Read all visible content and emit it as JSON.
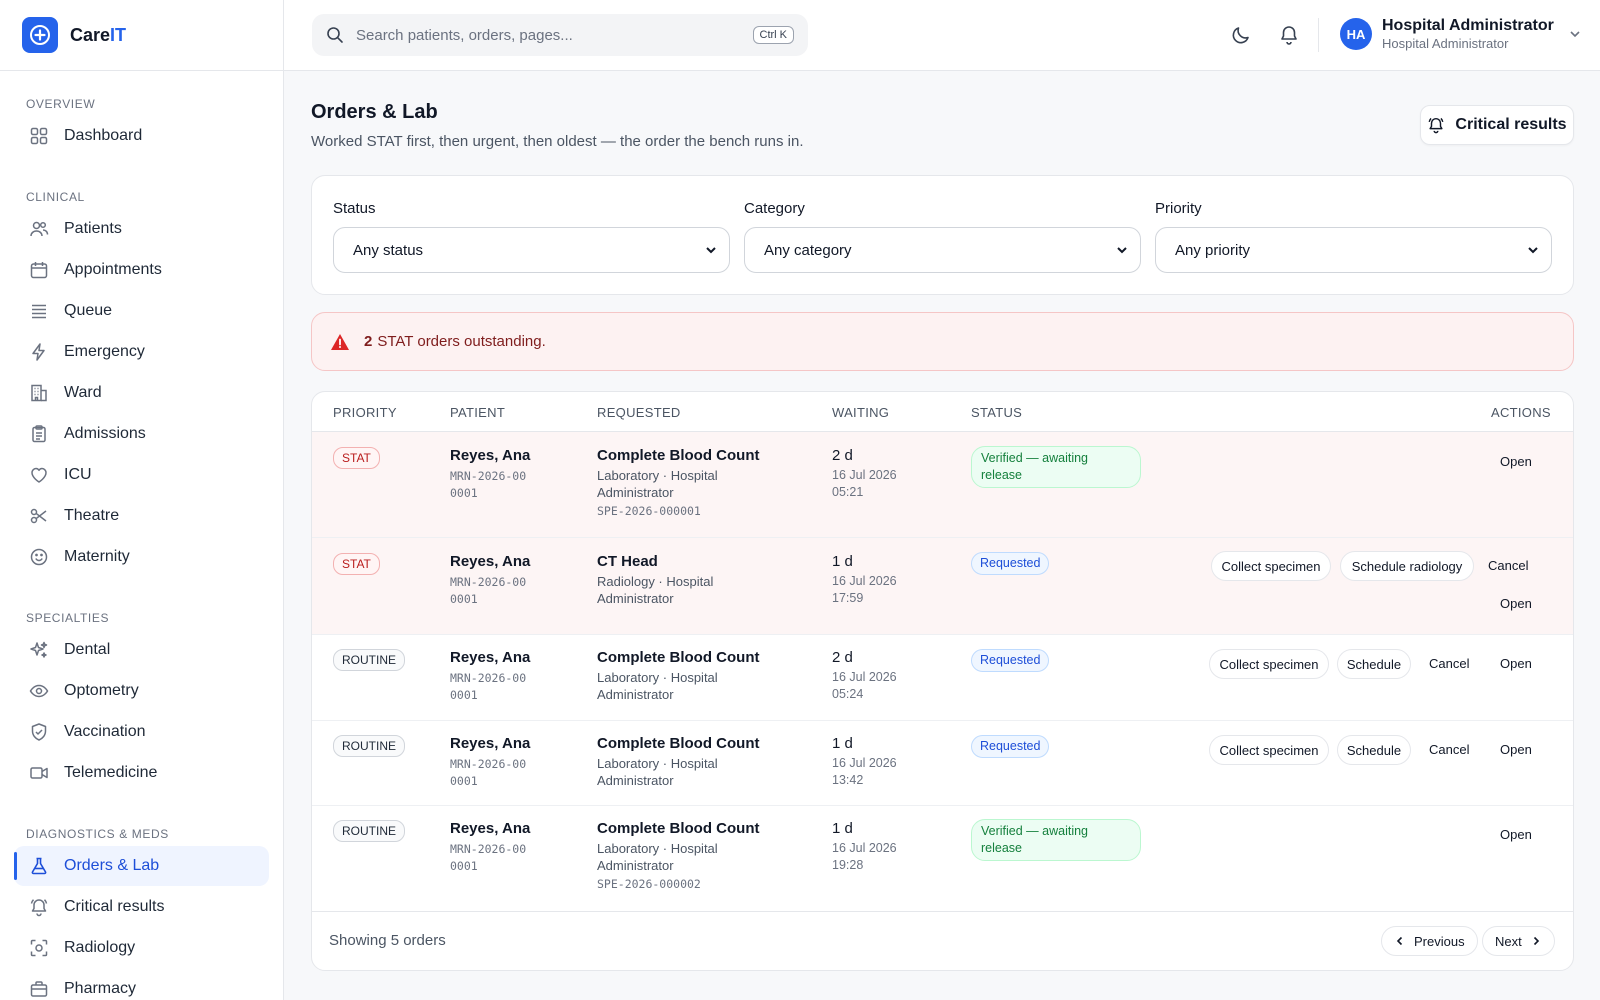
{
  "brand": {
    "name_main": "Care",
    "name_accent": "IT"
  },
  "search": {
    "placeholder": "Search patients, orders, pages...",
    "shortcut": "Ctrl K"
  },
  "user": {
    "initials": "HA",
    "name": "Hospital Administrator",
    "role": "Hospital Administrator"
  },
  "sidebar": {
    "sections": {
      "overview": "OVERVIEW",
      "clinical": "CLINICAL",
      "specialties": "SPECIALTIES",
      "diagnostics": "DIAGNOSTICS & MEDS"
    },
    "items": {
      "dashboard": "Dashboard",
      "patients": "Patients",
      "appointments": "Appointments",
      "queue": "Queue",
      "emergency": "Emergency",
      "ward": "Ward",
      "admissions": "Admissions",
      "icu": "ICU",
      "theatre": "Theatre",
      "maternity": "Maternity",
      "dental": "Dental",
      "optometry": "Optometry",
      "vaccination": "Vaccination",
      "telemedicine": "Telemedicine",
      "orders_lab": "Orders & Lab",
      "critical_results": "Critical results",
      "radiology": "Radiology",
      "pharmacy": "Pharmacy"
    },
    "active": "orders_lab"
  },
  "page": {
    "title": "Orders & Lab",
    "subtitle": "Worked STAT first, then urgent, then oldest — the order the bench runs in.",
    "critical_button": "Critical results"
  },
  "filters": {
    "status": {
      "label": "Status",
      "value": "Any status"
    },
    "category": {
      "label": "Category",
      "value": "Any category"
    },
    "priority": {
      "label": "Priority",
      "value": "Any priority"
    }
  },
  "alert": {
    "count": "2",
    "text": "STAT orders outstanding."
  },
  "table": {
    "headers": {
      "priority": "PRIORITY",
      "patient": "PATIENT",
      "requested": "REQUESTED",
      "waiting": "WAITING",
      "status": "STATUS",
      "actions": "ACTIONS"
    },
    "rows": [
      {
        "priority": "STAT",
        "patient": "Reyes, Ana",
        "mrn": "MRN-2026-000001",
        "test": "Complete Blood Count",
        "detail": "Laboratory · Hospital Administrator",
        "specimen": "SPE-2026-000001",
        "waiting": "2 d",
        "date": "16 Jul 2026 05:21",
        "status": "Verified — awaiting release",
        "actions": {
          "open": "Open"
        }
      },
      {
        "priority": "STAT",
        "patient": "Reyes, Ana",
        "mrn": "MRN-2026-000001",
        "test": "CT Head",
        "detail": "Radiology · Hospital Administrator",
        "specimen": "",
        "waiting": "1 d",
        "date": "16 Jul 2026 17:59",
        "status": "Requested",
        "actions": {
          "collect": "Collect specimen",
          "schedule": "Schedule radiology",
          "cancel": "Cancel",
          "open": "Open"
        }
      },
      {
        "priority": "ROUTINE",
        "patient": "Reyes, Ana",
        "mrn": "MRN-2026-000001",
        "test": "Complete Blood Count",
        "detail": "Laboratory · Hospital Administrator",
        "specimen": "",
        "waiting": "2 d",
        "date": "16 Jul 2026 05:24",
        "status": "Requested",
        "actions": {
          "collect": "Collect specimen",
          "schedule": "Schedule",
          "cancel": "Cancel",
          "open": "Open"
        }
      },
      {
        "priority": "ROUTINE",
        "patient": "Reyes, Ana",
        "mrn": "MRN-2026-000001",
        "test": "Complete Blood Count",
        "detail": "Laboratory · Hospital Administrator",
        "specimen": "",
        "waiting": "1 d",
        "date": "16 Jul 2026 13:42",
        "status": "Requested",
        "actions": {
          "collect": "Collect specimen",
          "schedule": "Schedule",
          "cancel": "Cancel",
          "open": "Open"
        }
      },
      {
        "priority": "ROUTINE",
        "patient": "Reyes, Ana",
        "mrn": "MRN-2026-000001",
        "test": "Complete Blood Count",
        "detail": "Laboratory · Hospital Administrator",
        "specimen": "SPE-2026-000002",
        "waiting": "1 d",
        "date": "16 Jul 2026 19:28",
        "status": "Verified — awaiting release",
        "actions": {
          "open": "Open"
        }
      }
    ]
  },
  "footer": {
    "showing": "Showing 5 orders",
    "previous": "Previous",
    "next": "Next"
  },
  "colors": {
    "accent": "#2563eb",
    "stat_row": "#fdf5f5",
    "alert_bg": "#fdf2f2",
    "verified": "#15803d",
    "requested": "#1d4ed8"
  }
}
